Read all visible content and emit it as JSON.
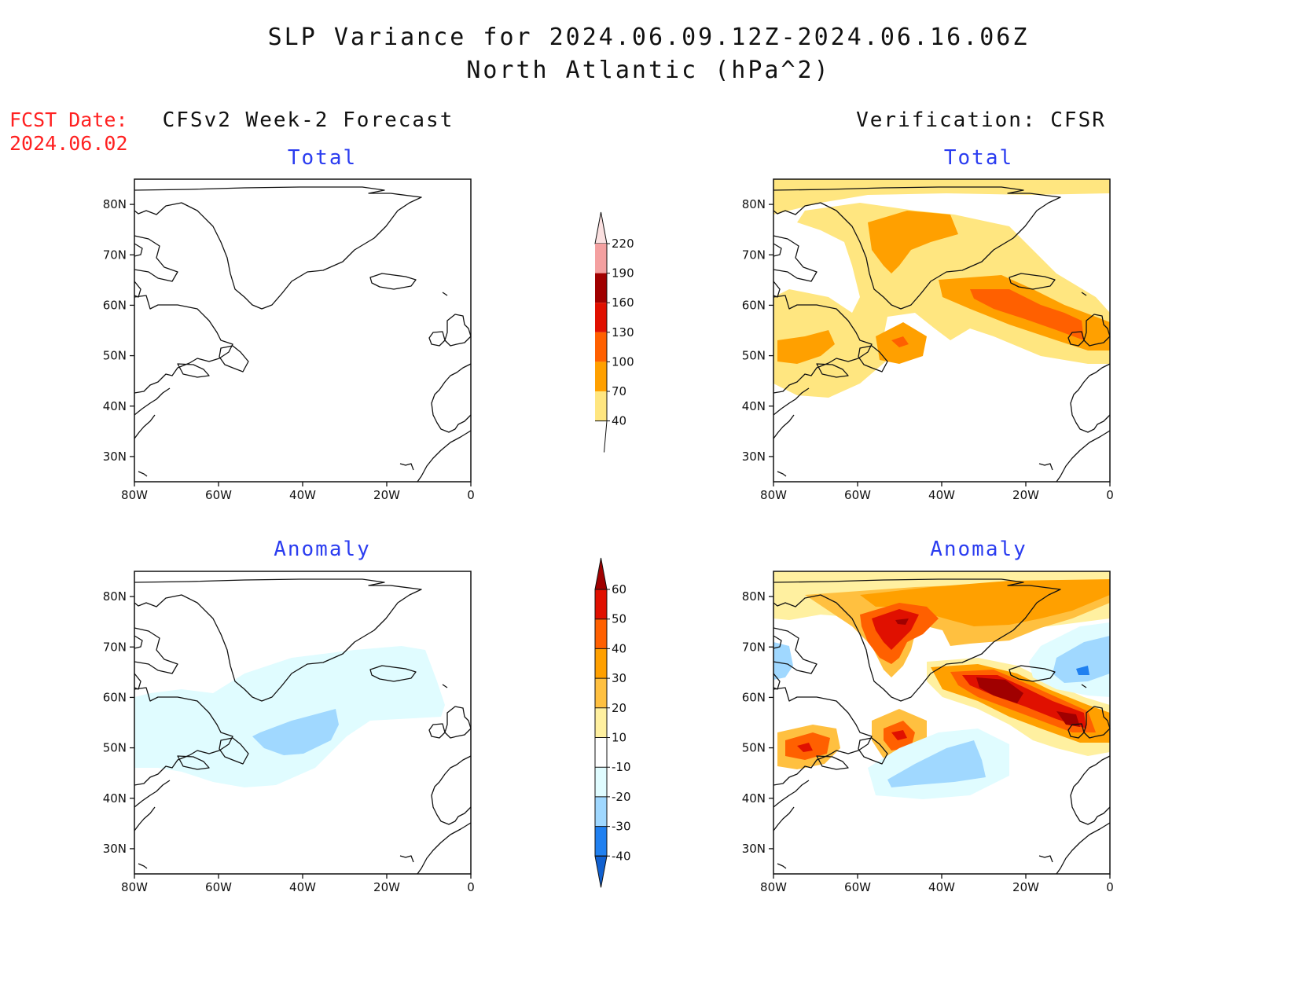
{
  "title": {
    "line1": "SLP Variance for 2024.06.09.12Z-2024.06.16.06Z",
    "line2": "North Atlantic (hPa^2)"
  },
  "forecast_date": {
    "label": "FCST Date:",
    "value": "2024.06.02"
  },
  "columns": {
    "left": "CFSv2 Week-2 Forecast",
    "right": "Verification: CFSR"
  },
  "panel_titles": {
    "total": "Total",
    "anomaly": "Anomaly"
  },
  "axes": {
    "lon_labels": [
      "80W",
      "60W",
      "40W",
      "20W",
      "0"
    ],
    "lat_labels": [
      "80N",
      "70N",
      "60N",
      "50N",
      "40N",
      "30N"
    ],
    "lon_range": [
      -80,
      0
    ],
    "lat_range": [
      25,
      85
    ]
  },
  "colorbar_total": {
    "levels": [
      40,
      70,
      100,
      130,
      160,
      190,
      220
    ],
    "colors": [
      "#ffe680",
      "#ffa000",
      "#ff6000",
      "#e01000",
      "#a00000",
      "#f4a0a0",
      "#fbe0e0"
    ]
  },
  "colorbar_anomaly": {
    "levels": [
      60,
      50,
      40,
      30,
      20,
      10,
      -10,
      -20,
      -30,
      -40
    ],
    "colors": [
      "#a00000",
      "#e01000",
      "#ff6000",
      "#ffa000",
      "#ffc040",
      "#fff0a0",
      "#ffffff",
      "#e0fcff",
      "#a0d8ff",
      "#2080f0",
      "#1060d0"
    ]
  }
}
